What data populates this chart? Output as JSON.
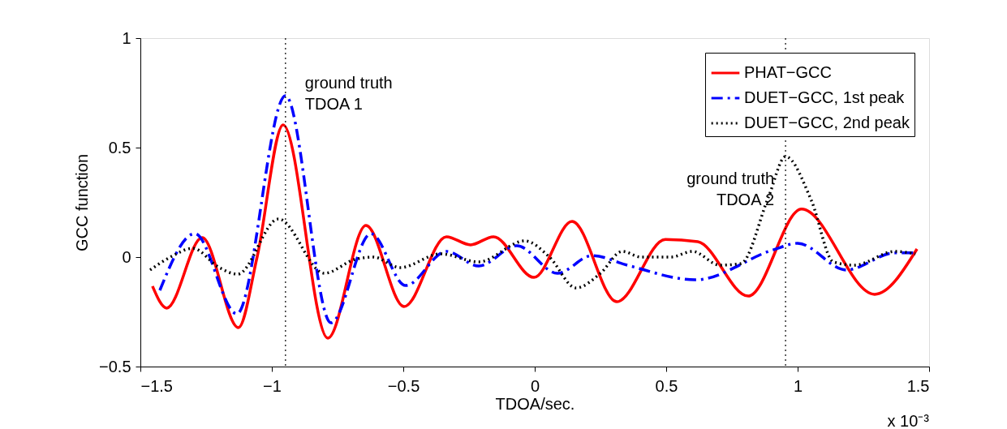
{
  "chart_data": {
    "type": "line",
    "xlabel": "TDOA/sec.",
    "ylabel": "GCC function",
    "xlim": [
      -1.5,
      1.5
    ],
    "xticks": [
      -1.5,
      -1,
      -0.5,
      0,
      0.5,
      1,
      1.5
    ],
    "ylim": [
      -0.5,
      1
    ],
    "yticks": [
      -0.5,
      0,
      0.5,
      1
    ],
    "grid": false,
    "legend": "top right",
    "marker": "none",
    "annotations": [
      "x 10⁻³"
    ],
    "ref_lines": [
      {
        "axis": "x",
        "value": -0.948,
        "label": "ground truth\nTDOA 1",
        "color": "#000000",
        "line_style": "dotted"
      },
      {
        "axis": "x",
        "value": 0.954,
        "label": "ground truth\nTDOA 2",
        "color": "#000000",
        "line_style": "dotted"
      }
    ],
    "series": [
      {
        "name": "PHAT−GCC",
        "color": "#ff0000",
        "line_style": "solid",
        "x": [
          -1.454,
          -1.4,
          -1.265,
          -1.127,
          -1.056,
          -0.957,
          -0.787,
          -0.642,
          -0.497,
          -0.336,
          -0.244,
          -0.157,
          -0.003,
          0.142,
          0.312,
          0.497,
          0.62,
          0.812,
          1.015,
          1.293,
          1.454
        ],
        "values": [
          -0.133,
          -0.233,
          0.089,
          -0.322,
          0,
          0.604,
          -0.37,
          0.144,
          -0.226,
          0.093,
          0.056,
          0.093,
          -0.093,
          0.163,
          -0.204,
          0.081,
          0.07,
          -0.178,
          0.219,
          -0.17,
          0.037
        ]
      },
      {
        "name": "DUET−GCC, 1st peak",
        "color": "#0000ff",
        "line_style": "dashed",
        "x": [
          -1.426,
          -1.293,
          -1.133,
          -0.948,
          -0.775,
          -0.623,
          -0.491,
          -0.336,
          -0.213,
          -0.068,
          0.086,
          0.219,
          0.352,
          0.611,
          0.907,
          1.0,
          1.185,
          1.37,
          1.448
        ],
        "values": [
          -0.152,
          0.107,
          -0.259,
          0.737,
          -0.3,
          0.107,
          -0.13,
          0.026,
          -0.041,
          0.052,
          -0.074,
          0.007,
          -0.037,
          -0.104,
          0.033,
          0.063,
          -0.059,
          0.019,
          0.019
        ]
      },
      {
        "name": "DUET−GCC, 2nd peak",
        "color": "#000000",
        "line_style": "dotted",
        "x": [
          -1.463,
          -1.386,
          -1.3,
          -1.2,
          -1.13,
          -0.975,
          -0.8,
          -0.685,
          -0.614,
          -0.512,
          -0.358,
          -0.213,
          -0.037,
          0.056,
          0.157,
          0.25,
          0.333,
          0.404,
          0.519,
          0.6,
          0.704,
          0.784,
          0.889,
          0.954,
          1.052,
          1.136,
          1.216,
          1.37,
          1.448
        ],
        "values": [
          -0.059,
          0,
          0.04,
          -0.048,
          -0.078,
          0.174,
          -0.074,
          -0.011,
          0,
          -0.048,
          0.015,
          -0.022,
          0.074,
          0,
          -0.141,
          -0.074,
          0.026,
          0,
          0,
          0.026,
          -0.037,
          -0.03,
          0.274,
          0.459,
          0.259,
          -0.022,
          -0.037,
          0.026,
          0.015
        ]
      }
    ]
  }
}
